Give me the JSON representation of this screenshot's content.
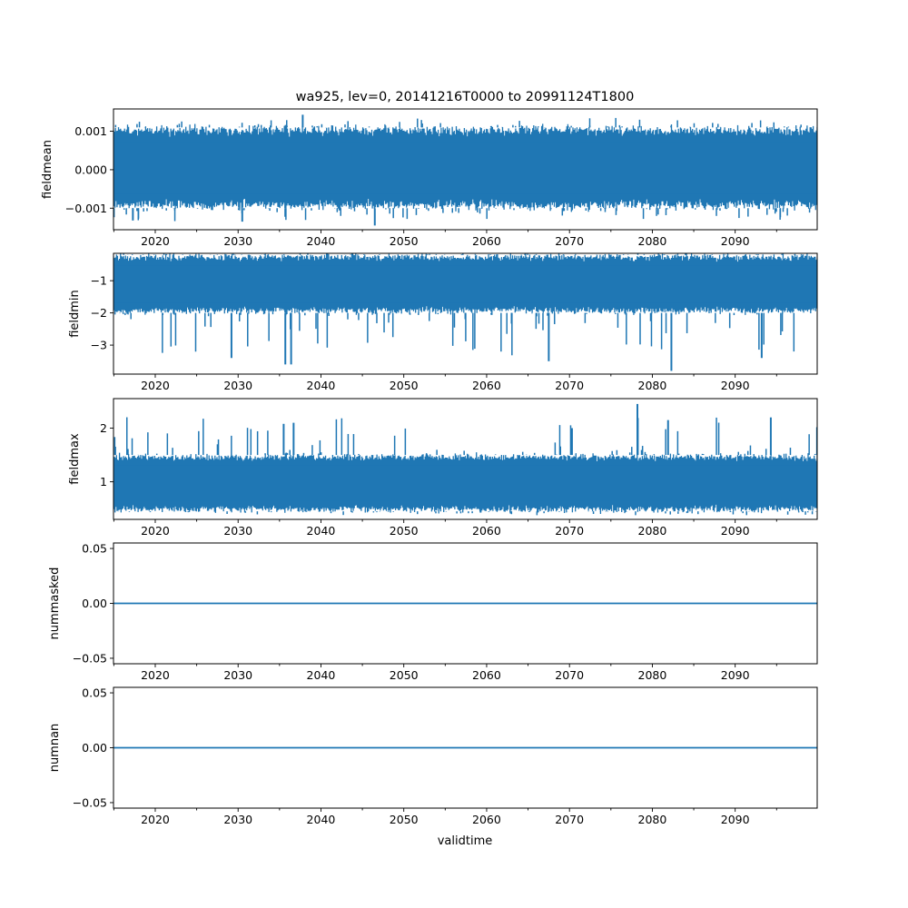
{
  "figure": {
    "title": "wa925, lev=0, 20141216T0000 to 20991124T1800",
    "xlabel": "validtime"
  },
  "style": {
    "series_color": "#1f77b4",
    "axis_color": "#000000",
    "background": "#ffffff"
  },
  "chart_data": [
    {
      "type": "line",
      "name": "fieldmean",
      "ylabel": "fieldmean",
      "xlim": [
        2014.96,
        2099.9
      ],
      "ylim": [
        -0.00156,
        0.00158
      ],
      "xticks": [
        "2020",
        "2030",
        "2040",
        "2050",
        "2060",
        "2070",
        "2080",
        "2090"
      ],
      "yticks": [
        {
          "value": 0.001,
          "label": "0.001"
        },
        {
          "value": 0.0,
          "label": "0.000"
        },
        {
          "value": -0.001,
          "label": "−0.001"
        }
      ],
      "envelope": {
        "upper": 0.0011,
        "lower": -0.001,
        "extreme_high": 0.00143,
        "extreme_low": -0.00145
      },
      "extremes": [
        {
          "x": 2037.8,
          "y": 0.00143
        },
        {
          "x": 2046.5,
          "y": -0.00145
        },
        {
          "x": 2030.5,
          "y": -0.00135
        },
        {
          "x": 2017.3,
          "y": -0.00132
        }
      ]
    },
    {
      "type": "line",
      "name": "fieldmin",
      "ylabel": "fieldmin",
      "xlim": [
        2014.96,
        2099.9
      ],
      "ylim": [
        -3.9,
        -0.15
      ],
      "xticks": [
        "2020",
        "2030",
        "2040",
        "2050",
        "2060",
        "2070",
        "2080",
        "2090"
      ],
      "yticks": [
        {
          "value": -1,
          "label": "−1"
        },
        {
          "value": -2,
          "label": "−2"
        },
        {
          "value": -3,
          "label": "−3"
        }
      ],
      "envelope": {
        "upper": -0.2,
        "lower": -2.0,
        "extreme_high": -0.15,
        "extreme_low": -3.8
      },
      "extremes": [
        {
          "x": 2082.3,
          "y": -3.8
        },
        {
          "x": 2035.7,
          "y": -3.6
        },
        {
          "x": 2036.4,
          "y": -3.6
        },
        {
          "x": 2067.5,
          "y": -3.5
        },
        {
          "x": 2029.2,
          "y": -3.4
        },
        {
          "x": 2093.2,
          "y": -3.4
        }
      ]
    },
    {
      "type": "line",
      "name": "fieldmax",
      "ylabel": "fieldmax",
      "xlim": [
        2014.96,
        2099.9
      ],
      "ylim": [
        0.3,
        2.55
      ],
      "xticks": [
        "2020",
        "2030",
        "2040",
        "2050",
        "2060",
        "2070",
        "2080",
        "2090"
      ],
      "yticks": [
        {
          "value": 2,
          "label": "2"
        },
        {
          "value": 1,
          "label": "1"
        }
      ],
      "envelope": {
        "upper": 1.5,
        "lower": 0.45,
        "extreme_high": 2.45,
        "extreme_low": 0.35
      },
      "extremes": [
        {
          "x": 2078.2,
          "y": 2.45
        },
        {
          "x": 2094.3,
          "y": 2.2
        },
        {
          "x": 2081.9,
          "y": 2.15
        },
        {
          "x": 2036.7,
          "y": 2.1
        },
        {
          "x": 2035.5,
          "y": 2.08
        },
        {
          "x": 2070.3,
          "y": 2.0
        }
      ]
    },
    {
      "type": "line",
      "name": "nummasked",
      "ylabel": "nummasked",
      "xlim": [
        2014.96,
        2099.9
      ],
      "ylim": [
        -0.055,
        0.055
      ],
      "xticks": [
        "2020",
        "2030",
        "2040",
        "2050",
        "2060",
        "2070",
        "2080",
        "2090"
      ],
      "yticks": [
        {
          "value": 0.05,
          "label": "0.05"
        },
        {
          "value": 0.0,
          "label": "0.00"
        },
        {
          "value": -0.05,
          "label": "−0.05"
        }
      ],
      "constant": 0.0
    },
    {
      "type": "line",
      "name": "numnan",
      "ylabel": "numnan",
      "xlim": [
        2014.96,
        2099.9
      ],
      "ylim": [
        -0.055,
        0.055
      ],
      "xticks": [
        "2020",
        "2030",
        "2040",
        "2050",
        "2060",
        "2070",
        "2080",
        "2090"
      ],
      "yticks": [
        {
          "value": 0.05,
          "label": "0.05"
        },
        {
          "value": 0.0,
          "label": "0.00"
        },
        {
          "value": -0.05,
          "label": "−0.05"
        }
      ],
      "constant": 0.0
    }
  ]
}
